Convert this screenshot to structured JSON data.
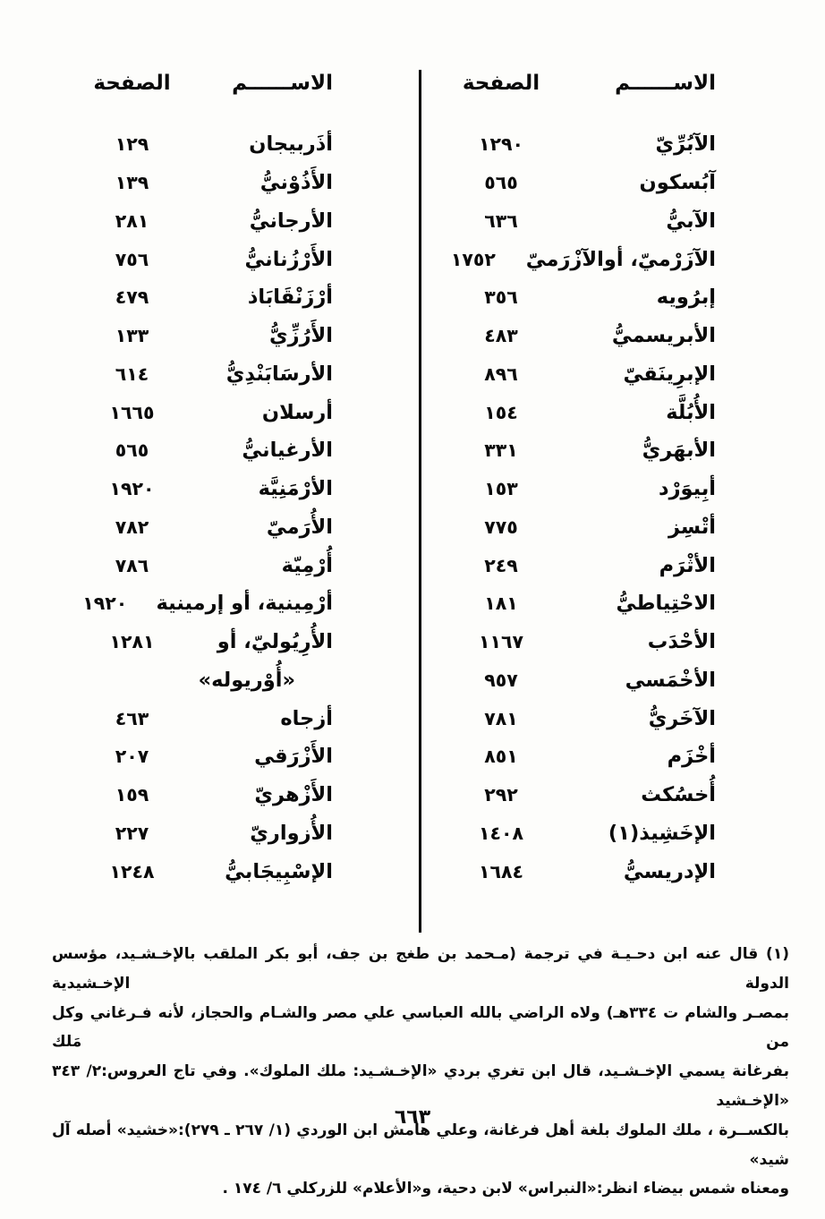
{
  "page": {
    "number": "٦٦٣"
  },
  "columns": {
    "right": {
      "header_name": "الاســــــم",
      "header_page": "الصفحة",
      "entries": [
        {
          "name": "الآبُرِّيّ",
          "page": "١٢٩٠"
        },
        {
          "name": "آبُسكون",
          "page": "٥٦٥"
        },
        {
          "name": "الآبيُّ",
          "page": "٦٣٦"
        },
        {
          "name": "الآزَرْميّ، أوالآزْرَميّ",
          "page": "١٧٥٢"
        },
        {
          "name": "إبرُويه",
          "page": "٣٥٦"
        },
        {
          "name": "الأبريسميُّ",
          "page": "٤٨٣"
        },
        {
          "name": "الإبرِينَقيّ",
          "page": "٨٩٦"
        },
        {
          "name": "الأُبُلَّة",
          "page": "١٥٤"
        },
        {
          "name": "الأبهَريُّ",
          "page": "٣٣١"
        },
        {
          "name": "أبِيوَرْد",
          "page": "١٥٣"
        },
        {
          "name": "أتْسِز",
          "page": "٧٧٥"
        },
        {
          "name": "الأثْرَم",
          "page": "٢٤٩"
        },
        {
          "name": "الاحْتِياطيُّ",
          "page": "١٨١"
        },
        {
          "name": "الأحْدَب",
          "page": "١١٦٧"
        },
        {
          "name": "الأخْمَسي",
          "page": "٩٥٧"
        },
        {
          "name": "الآخَريُّ",
          "page": "٧٨١"
        },
        {
          "name": "أخْزَم",
          "page": "٨٥١"
        },
        {
          "name": "أُخسُكث",
          "page": "٢٩٢"
        },
        {
          "name": "الإخَشِيذ(١)",
          "page": "١٤٠٨"
        },
        {
          "name": "الإدريسيُّ",
          "page": "١٦٨٤"
        }
      ]
    },
    "left": {
      "header_name": "الاســــــم",
      "header_page": "الصفحة",
      "entries": [
        {
          "name": "أذَربيجان",
          "page": "١٢٩"
        },
        {
          "name": "الأَذُوْنيُّ",
          "page": "١٣٩"
        },
        {
          "name": "الأرجانيُّ",
          "page": "٢٨١"
        },
        {
          "name": "الأَرْزُنانيُّ",
          "page": "٧٥٦"
        },
        {
          "name": "أرْزَنْقَابَاذ",
          "page": "٤٧٩"
        },
        {
          "name": "الأَرُزِّيُّ",
          "page": "١٣٣"
        },
        {
          "name": "الأرسَابَنْدِيُّ",
          "page": "٦١٤"
        },
        {
          "name": "أرسلان",
          "page": "١٦٦٥"
        },
        {
          "name": "الأرغيانيُّ",
          "page": "٥٦٥"
        },
        {
          "name": "الأرْمَنِيَّة",
          "page": "١٩٢٠"
        },
        {
          "name": "الأُرَميّ",
          "page": "٧٨٢"
        },
        {
          "name": "أُرْمِيّة",
          "page": "٧٨٦"
        },
        {
          "name": "أرْمِينية، أو إرمينية",
          "page": "١٩٢٠"
        },
        {
          "name": "الأُرِيُوليّ، أو",
          "page": "١٢٨١"
        },
        {
          "name": "«أُوْريوله»",
          "page": ""
        },
        {
          "name": "أزجاه",
          "page": "٤٦٣"
        },
        {
          "name": "الأَزْرَقي",
          "page": "٢٠٧"
        },
        {
          "name": "الأَزْهريّ",
          "page": "١٥٩"
        },
        {
          "name": "الأُزواريّ",
          "page": "٢٢٧"
        },
        {
          "name": "الإسْبِيجَابيُّ",
          "page": "١٢٤٨"
        }
      ]
    }
  },
  "footnote": {
    "lines": [
      "(١) قال عنه ابن دحـيـة في ترجمة (مـحمد بن طغج بن جف، أبو بكر الملقب بالإخـشـيد، مؤسس الدولة الإخـشيدية",
      "بمصـر والشام ت ٣٣٤هـ) ولاه الراضي بالله العباسي علي مصر والشـام والحجاز، لأنه فـرغاني وكل من مَلك",
      "بفرغانة يسمي الإخـشـيد، قال ابن تغري بردي «الإخـشـيد: ملك الملوك». وفي تاج العروس:٢/ ٣٤٣ «الإخـشيد",
      "بالكســرة ، ملك الملوك بلغة أهل فرغانة، وعلي هامش ابن الوردي (١/ ٢٦٧ ـ ٢٧٩):«خشيد» أصله آل شيد»",
      "ومعناه شمس بيضاء انظر:«النبراس» لابن دحية، و«الأعلام» للزركلي ٦/ ١٧٤ ."
    ]
  }
}
